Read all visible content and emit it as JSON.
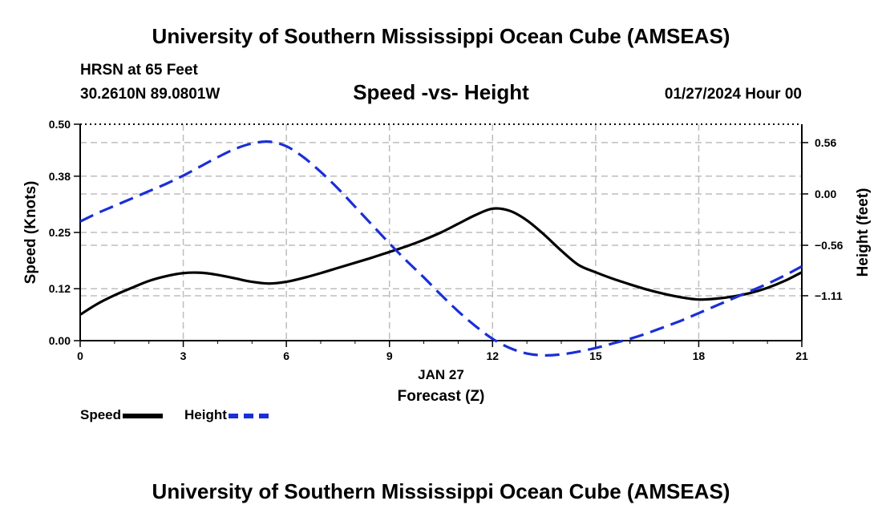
{
  "header": {
    "title": "University of Southern Mississippi Ocean Cube (AMSEAS)",
    "station": "HRSN at 65 Feet",
    "coords": "30.2610N  89.0801W",
    "date": "01/27/2024 Hour 00"
  },
  "footer": {
    "title": "University of Southern Mississippi Ocean Cube (AMSEAS)"
  },
  "legend": {
    "speed_label": "Speed",
    "height_label": "Height"
  },
  "colors": {
    "speed": "#000000",
    "height": "#1a2fd6",
    "grid": "#bdbdbd"
  },
  "chart_data": {
    "type": "line",
    "title": "Speed -vs- Height",
    "xlabel": "Forecast (Z)",
    "xlabel_date": "JAN 27",
    "ylabel": "Speed (Knots)",
    "y2label": "Height (feet)",
    "xlim": [
      0,
      21
    ],
    "ylim": [
      0,
      0.5
    ],
    "y2lim": [
      -1.6,
      0.76
    ],
    "x_ticks": [
      0,
      3,
      6,
      9,
      12,
      15,
      18,
      21
    ],
    "y_ticks": [
      0.0,
      0.12,
      0.25,
      0.38,
      0.5
    ],
    "y_tick_labels": [
      "0.00",
      "0.12",
      "0.25",
      "0.38",
      "0.50"
    ],
    "y2_ticks": [
      0.56,
      0.0,
      -0.56,
      -1.11
    ],
    "y2_tick_labels": [
      "0.56",
      "0.00",
      "−0.56",
      "−1.11"
    ],
    "grid": true,
    "legend_position": "bottom-left",
    "x": [
      0,
      0.5,
      1,
      1.5,
      2,
      2.5,
      3,
      3.5,
      4,
      4.5,
      5,
      5.5,
      6,
      6.5,
      7,
      7.5,
      8,
      8.5,
      9,
      9.5,
      10,
      10.5,
      11,
      11.5,
      12,
      12.5,
      13,
      13.5,
      14,
      14.5,
      15,
      15.5,
      16,
      16.5,
      17,
      17.5,
      18,
      18.5,
      19,
      19.5,
      20,
      20.5,
      21
    ],
    "series": [
      {
        "name": "Speed",
        "axis": "left",
        "values": [
          0.06,
          0.085,
          0.105,
          0.122,
          0.138,
          0.149,
          0.156,
          0.157,
          0.152,
          0.144,
          0.136,
          0.132,
          0.136,
          0.145,
          0.156,
          0.168,
          0.18,
          0.192,
          0.205,
          0.218,
          0.233,
          0.25,
          0.27,
          0.29,
          0.305,
          0.3,
          0.278,
          0.245,
          0.208,
          0.175,
          0.158,
          0.143,
          0.13,
          0.118,
          0.108,
          0.1,
          0.095,
          0.097,
          0.102,
          0.11,
          0.122,
          0.138,
          0.158
        ]
      },
      {
        "name": "Height",
        "axis": "right",
        "values": [
          -0.3,
          -0.21,
          -0.13,
          -0.05,
          0.03,
          0.11,
          0.2,
          0.3,
          0.4,
          0.49,
          0.55,
          0.57,
          0.52,
          0.4,
          0.24,
          0.06,
          -0.14,
          -0.34,
          -0.54,
          -0.73,
          -0.91,
          -1.1,
          -1.28,
          -1.44,
          -1.58,
          -1.68,
          -1.74,
          -1.76,
          -1.75,
          -1.72,
          -1.68,
          -1.63,
          -1.58,
          -1.52,
          -1.45,
          -1.38,
          -1.3,
          -1.22,
          -1.14,
          -1.06,
          -0.98,
          -0.89,
          -0.79
        ]
      }
    ]
  }
}
